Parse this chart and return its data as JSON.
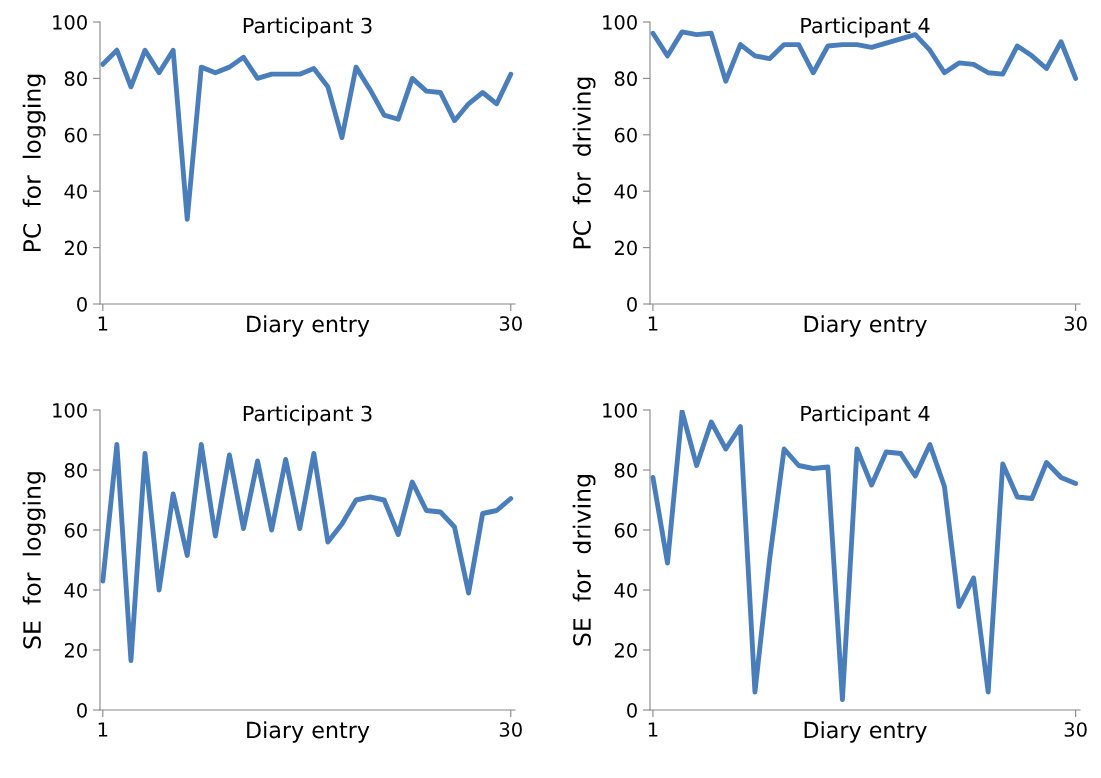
{
  "chart_data": [
    {
      "type": "line",
      "title": "Participant 3",
      "xlabel": "Diary entry",
      "ylabel": "PC  for  logging",
      "x": [
        1,
        2,
        3,
        4,
        5,
        6,
        7,
        8,
        9,
        10,
        11,
        12,
        13,
        14,
        15,
        16,
        17,
        18,
        19,
        20,
        21,
        22,
        23,
        24,
        25,
        26,
        27,
        28,
        29,
        30
      ],
      "series": [
        {
          "color": "#4a7ebb",
          "values": [
            85,
            90,
            77,
            90,
            82,
            90,
            30,
            84,
            82,
            84,
            87.5,
            80,
            81.5,
            81.5,
            81.5,
            83.5,
            77,
            59,
            84,
            76,
            67,
            65.5,
            80,
            75.5,
            75,
            65,
            71,
            75,
            71,
            81.5
          ]
        }
      ],
      "xlim": [
        0.8,
        30.3
      ],
      "xticks": [
        1,
        30
      ],
      "ylim": [
        0,
        100
      ],
      "yticks": [
        0,
        20,
        40,
        60,
        80,
        100
      ],
      "grid": false
    },
    {
      "type": "line",
      "title": "Participant 4",
      "xlabel": "Diary entry",
      "ylabel": "PC  for  driving",
      "x": [
        1,
        2,
        3,
        4,
        5,
        6,
        7,
        8,
        9,
        10,
        11,
        12,
        13,
        14,
        15,
        16,
        17,
        18,
        19,
        20,
        21,
        22,
        23,
        24,
        25,
        26,
        27,
        28,
        29,
        30
      ],
      "series": [
        {
          "color": "#4a7ebb",
          "values": [
            96,
            88,
            96.5,
            95.5,
            96,
            79,
            92,
            88,
            87,
            92,
            92,
            82,
            91.5,
            92,
            92,
            91,
            92.5,
            94,
            95.5,
            90,
            82,
            85.5,
            85,
            82,
            81.5,
            91.5,
            88,
            83.5,
            93,
            80
          ]
        }
      ],
      "xlim": [
        0.8,
        30.3
      ],
      "xticks": [
        1,
        30
      ],
      "ylim": [
        0,
        100
      ],
      "yticks": [
        0,
        20,
        40,
        60,
        80,
        100
      ],
      "grid": false
    },
    {
      "type": "line",
      "title": "Participant 3",
      "xlabel": "Diary entry",
      "ylabel": "SE  for  logging",
      "x": [
        1,
        2,
        3,
        4,
        5,
        6,
        7,
        8,
        9,
        10,
        11,
        12,
        13,
        14,
        15,
        16,
        17,
        18,
        19,
        20,
        21,
        22,
        23,
        24,
        25,
        26,
        27,
        28,
        29,
        30
      ],
      "series": [
        {
          "color": "#4a7ebb",
          "values": [
            43,
            88.5,
            16.5,
            85.5,
            40,
            72,
            51.5,
            88.5,
            58,
            85,
            60.5,
            83,
            60,
            83.5,
            60.5,
            85.5,
            56,
            62,
            70,
            71,
            70,
            58.5,
            76,
            66.5,
            66,
            61,
            39,
            65.5,
            66.5,
            70.5
          ]
        }
      ],
      "xlim": [
        0.8,
        30.3
      ],
      "xticks": [
        1,
        30
      ],
      "ylim": [
        0,
        100
      ],
      "yticks": [
        0,
        20,
        40,
        60,
        80,
        100
      ],
      "grid": false
    },
    {
      "type": "line",
      "title": "Participant 4",
      "xlabel": "Diary entry",
      "ylabel": "SE  for  driving",
      "x": [
        1,
        2,
        3,
        4,
        5,
        6,
        7,
        8,
        9,
        10,
        11,
        12,
        13,
        14,
        15,
        16,
        17,
        18,
        19,
        20,
        21,
        22,
        23,
        24,
        25,
        26,
        27,
        28,
        29,
        30
      ],
      "series": [
        {
          "color": "#4a7ebb",
          "values": [
            77.5,
            49,
            99.5,
            81.5,
            96,
            87,
            94.5,
            6,
            50,
            87,
            81.5,
            80.5,
            81,
            3.5,
            87,
            75,
            86,
            85.5,
            78,
            88.5,
            74.5,
            34.5,
            44,
            6,
            82,
            71,
            70.5,
            82.5,
            77.5,
            75.5
          ]
        }
      ],
      "xlim": [
        0.8,
        30.3
      ],
      "xticks": [
        1,
        30
      ],
      "ylim": [
        0,
        100
      ],
      "yticks": [
        0,
        20,
        40,
        60,
        80,
        100
      ],
      "grid": false
    }
  ]
}
